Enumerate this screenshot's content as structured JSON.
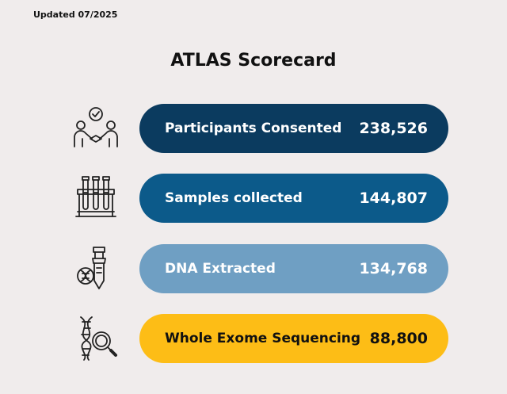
{
  "updated": "Updated  07/2025",
  "title": "ATLAS Scorecard",
  "metrics": [
    {
      "label": "Participants Consented",
      "value": "238,526",
      "icon": "people-handshake-icon",
      "color": "#0b3b5f"
    },
    {
      "label": "Samples collected",
      "value": "144,807",
      "icon": "test-tubes-icon",
      "color": "#0c5a8a"
    },
    {
      "label": "DNA Extracted",
      "value": "134,768",
      "icon": "dna-tube-icon",
      "color": "#6f9fc3"
    },
    {
      "label": "Whole Exome Sequencing",
      "value": "88,800",
      "icon": "dna-magnifier-icon",
      "color": "#fdbd16"
    }
  ]
}
